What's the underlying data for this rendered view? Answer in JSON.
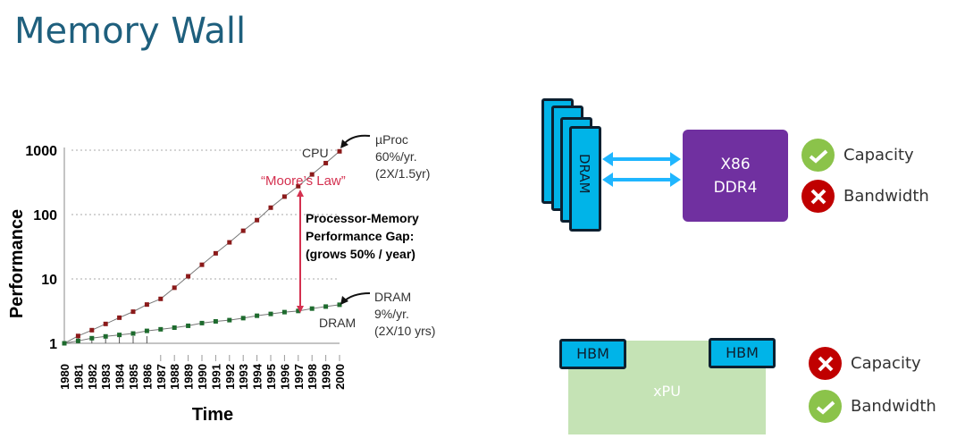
{
  "slide": {
    "title": "Memory Wall"
  },
  "chart_data": {
    "type": "line",
    "xlabel": "Time",
    "ylabel": "Performance",
    "yscale": "log",
    "ylim": [
      1,
      1000
    ],
    "xlim": [
      1980,
      2000
    ],
    "yticks": [
      "1",
      "10",
      "100",
      "1000"
    ],
    "x": [
      1980,
      1981,
      1982,
      1983,
      1984,
      1985,
      1986,
      1987,
      1988,
      1989,
      1990,
      1991,
      1992,
      1993,
      1994,
      1995,
      1996,
      1997,
      1998,
      1999,
      2000
    ],
    "series": [
      {
        "name": "CPU",
        "color": "#8b1a1a",
        "values": [
          1,
          1.3,
          1.6,
          2.0,
          2.5,
          3.1,
          4.0,
          4.9,
          7.3,
          11,
          16.6,
          25,
          37,
          56,
          82,
          128,
          190,
          276,
          420,
          630,
          960
        ]
      },
      {
        "name": "DRAM",
        "color": "#1e6b2e",
        "values": [
          1,
          1.09,
          1.2,
          1.28,
          1.35,
          1.42,
          1.56,
          1.65,
          1.75,
          1.87,
          2.06,
          2.19,
          2.29,
          2.46,
          2.68,
          2.86,
          3.05,
          3.18,
          3.46,
          3.72,
          3.97
        ]
      }
    ],
    "grid": "dotted horizontal",
    "annotations": {
      "moores_law": "“Moore’s Law”",
      "gap": [
        "Processor-Memory",
        "Performance Gap:",
        "(grows 50% / year)"
      ],
      "uproc": [
        "µProc",
        "60%/yr.",
        "(2X/1.5yr)"
      ],
      "dram": [
        "DRAM",
        "9%/yr.",
        "(2X/10 yrs)"
      ]
    }
  },
  "diagram": {
    "dram_label": "DRAM",
    "cpu_lines": [
      "X86",
      "DDR4"
    ],
    "top_status": [
      {
        "label": "Capacity",
        "ok": true
      },
      {
        "label": "Bandwidth",
        "ok": false
      }
    ],
    "xpu_label": "xPU",
    "hbm_label": "HBM",
    "bottom_status": [
      {
        "label": "Capacity",
        "ok": false
      },
      {
        "label": "Bandwidth",
        "ok": true
      }
    ],
    "arrow_color": "#1fb6ff",
    "accent": "#7030a0"
  }
}
